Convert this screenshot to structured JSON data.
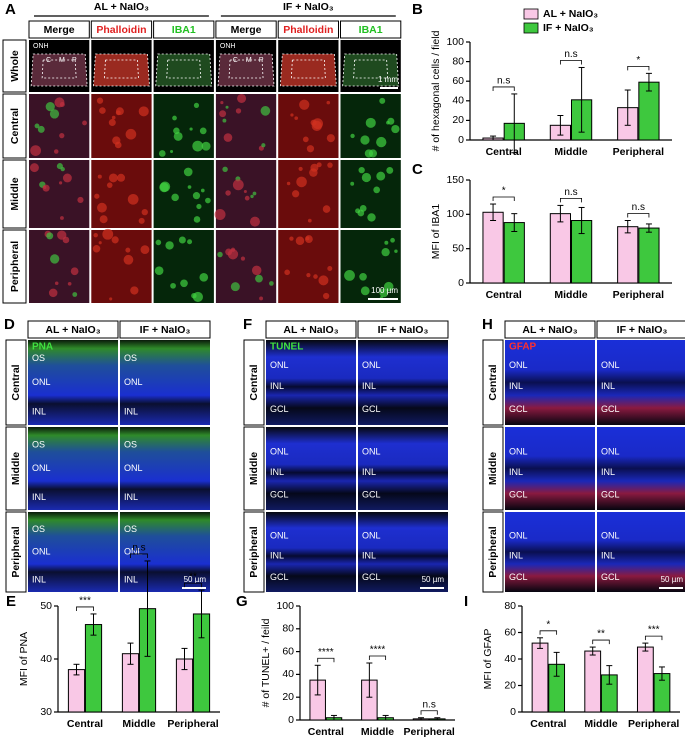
{
  "figure": {
    "panel_a": {
      "label": "A",
      "groups": [
        "AL + NaIO₃",
        "IF + NaIO₃"
      ],
      "columns": [
        "Merge",
        "Phalloidin",
        "IBA1"
      ],
      "rows": [
        "Whole",
        "Central",
        "Middle",
        "Peripheral"
      ],
      "regions": [
        "ONH",
        "C",
        "M",
        "P"
      ],
      "scale_bars": [
        "1 mm",
        "100 µm"
      ]
    },
    "panel_d": {
      "label": "D",
      "groups": [
        "AL + NaIO₃",
        "IF + NaIO₃"
      ],
      "rows": [
        "Central",
        "Middle",
        "Peripheral"
      ],
      "stain": "PNA",
      "layers": [
        "OS",
        "ONL",
        "INL"
      ],
      "scale_bar": "50 µm"
    },
    "panel_f": {
      "label": "F",
      "groups": [
        "AL + NaIO₃",
        "IF + NaIO₃"
      ],
      "rows": [
        "Central",
        "Middle",
        "Peripheral"
      ],
      "stain": "TUNEL",
      "layers": [
        "ONL",
        "INL",
        "GCL"
      ],
      "scale_bar": "50 µm"
    },
    "panel_h": {
      "label": "H",
      "groups": [
        "AL + NaIO₃",
        "IF + NaIO₃"
      ],
      "rows": [
        "Central",
        "Middle",
        "Peripheral"
      ],
      "stain": "GFAP",
      "layers": [
        "ONL",
        "INL",
        "GCL"
      ],
      "scale_bar": "50 µm"
    }
  },
  "chart_data": [
    {
      "panel": "B",
      "type": "bar",
      "ylabel": "# of hexagonal cells / field",
      "categories": [
        "Central",
        "Middle",
        "Peripheral"
      ],
      "series": [
        {
          "name": "AL + NaIO₃",
          "color": "#f9c8e6",
          "values": [
            2,
            15,
            33
          ],
          "errors": [
            2,
            10,
            18
          ]
        },
        {
          "name": "IF + NaIO₃",
          "color": "#3ec83e",
          "values": [
            17,
            41,
            59
          ],
          "errors": [
            30,
            33,
            9
          ]
        }
      ],
      "ylim": [
        0,
        100
      ],
      "yticks": [
        0,
        20,
        40,
        60,
        80,
        100
      ],
      "annotations": [
        "n.s",
        "n.s",
        "*"
      ]
    },
    {
      "panel": "C",
      "type": "bar",
      "ylabel": "MFI of IBA1",
      "categories": [
        "Central",
        "Middle",
        "Peripheral"
      ],
      "series": [
        {
          "color": "#f9c8e6",
          "values": [
            103,
            101,
            82
          ],
          "errors": [
            12,
            12,
            9
          ]
        },
        {
          "color": "#3ec83e",
          "values": [
            88,
            91,
            80
          ],
          "errors": [
            13,
            19,
            6
          ]
        }
      ],
      "ylim": [
        0,
        150
      ],
      "yticks": [
        0,
        50,
        100,
        150
      ],
      "annotations": [
        "*",
        "n.s",
        "n.s"
      ]
    },
    {
      "panel": "E",
      "type": "bar",
      "ylabel": "MFI of PNA",
      "categories": [
        "Central",
        "Middle",
        "Peripheral"
      ],
      "series": [
        {
          "color": "#f9c8e6",
          "values": [
            38,
            41,
            40
          ],
          "errors": [
            1,
            2,
            2
          ]
        },
        {
          "color": "#3ec83e",
          "values": [
            46.5,
            49.5,
            48.5
          ],
          "errors": [
            2,
            9,
            4.5
          ]
        }
      ],
      "ylim": [
        30,
        50
      ],
      "yticks": [
        30,
        40,
        50
      ],
      "annotations": [
        "***",
        "n.s",
        "**"
      ]
    },
    {
      "panel": "G",
      "type": "bar",
      "ylabel": "# of TUNEL+ / feild",
      "categories": [
        "Central",
        "Middle",
        "Peripheral"
      ],
      "series": [
        {
          "color": "#f9c8e6",
          "values": [
            35,
            35,
            1
          ],
          "errors": [
            13,
            15,
            1
          ]
        },
        {
          "color": "#3ec83e",
          "values": [
            2,
            2,
            1
          ],
          "errors": [
            2,
            2,
            1
          ]
        }
      ],
      "ylim": [
        0,
        100
      ],
      "yticks": [
        0,
        20,
        40,
        60,
        80,
        100
      ],
      "annotations": [
        "****",
        "****",
        "n.s"
      ]
    },
    {
      "panel": "I",
      "type": "bar",
      "ylabel": "MFI of GFAP",
      "categories": [
        "Central",
        "Middle",
        "Peripheral"
      ],
      "series": [
        {
          "color": "#f9c8e6",
          "values": [
            52,
            46,
            49
          ],
          "errors": [
            4,
            3,
            3
          ]
        },
        {
          "color": "#3ec83e",
          "values": [
            36,
            28,
            29
          ],
          "errors": [
            9,
            7,
            5
          ]
        }
      ],
      "ylim": [
        0,
        80
      ],
      "yticks": [
        0,
        20,
        40,
        60,
        80
      ],
      "annotations": [
        "*",
        "**",
        "***"
      ]
    }
  ]
}
